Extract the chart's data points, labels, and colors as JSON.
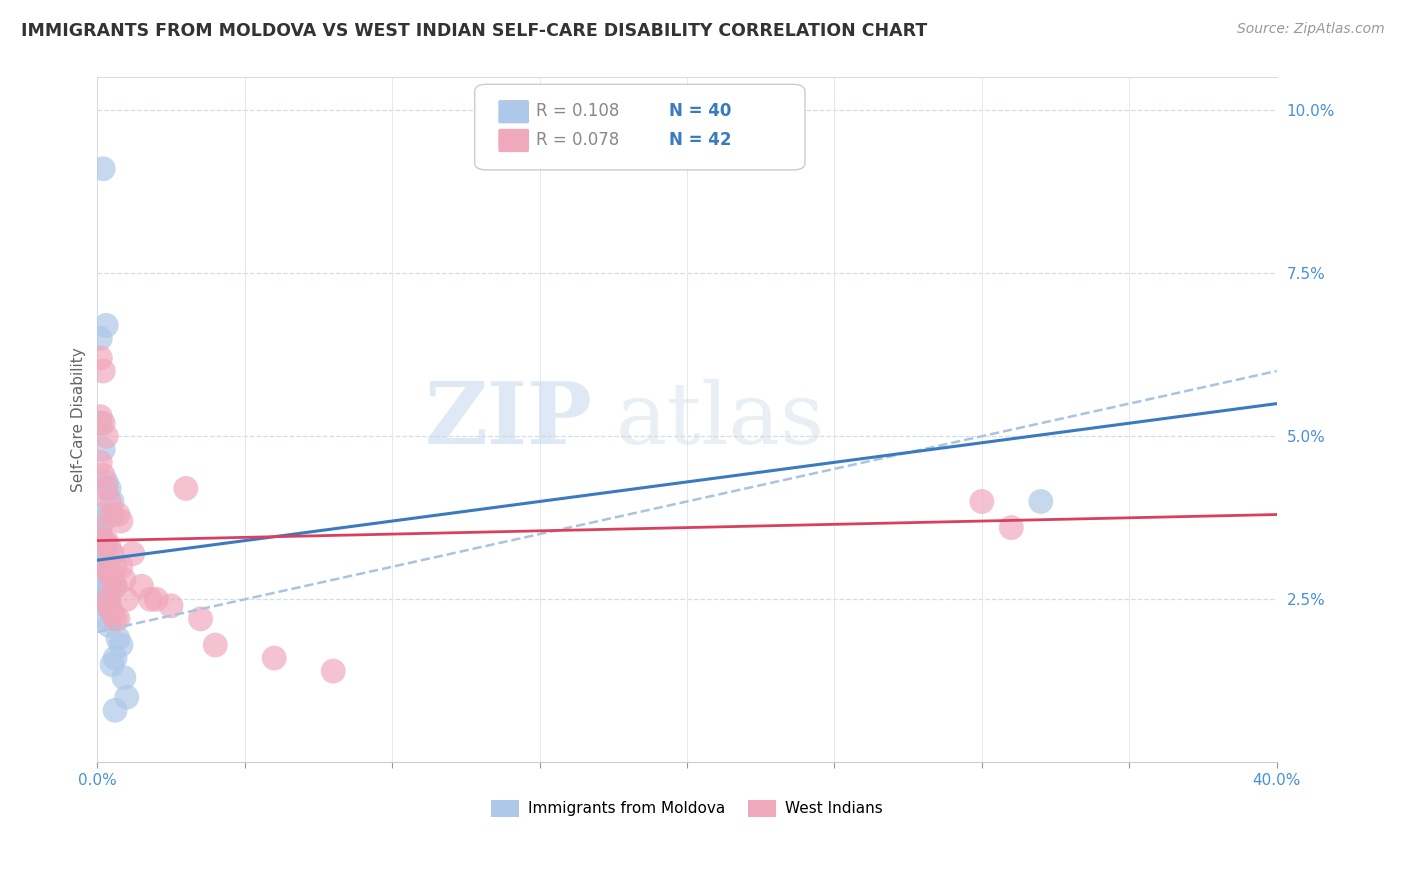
{
  "title": "IMMIGRANTS FROM MOLDOVA VS WEST INDIAN SELF-CARE DISABILITY CORRELATION CHART",
  "source": "Source: ZipAtlas.com",
  "ylabel": "Self-Care Disability",
  "right_yticklabels": [
    "",
    "2.5%",
    "5.0%",
    "7.5%",
    "10.0%"
  ],
  "right_yticks": [
    0.0,
    0.025,
    0.05,
    0.075,
    0.1
  ],
  "legend_r1": "R = 0.108",
  "legend_n1": "N = 40",
  "legend_r2": "R = 0.078",
  "legend_n2": "N = 42",
  "legend_label1": "Immigrants from Moldova",
  "legend_label2": "West Indians",
  "blue_color": "#adc8e8",
  "pink_color": "#f0a8bc",
  "blue_line_color": "#3a7bbf",
  "pink_line_color": "#d94060",
  "dashed_line_color": "#aac4df",
  "watermark_zip": "ZIP",
  "watermark_atlas": "atlas",
  "xmin": 0.0,
  "xmax": 0.4,
  "ymin": 0.0,
  "ymax": 0.105,
  "background_color": "#ffffff",
  "moldova_x": [
    0.002,
    0.001,
    0.003,
    0.001,
    0.002,
    0.003,
    0.004,
    0.005,
    0.001,
    0.002,
    0.001,
    0.002,
    0.003,
    0.001,
    0.002,
    0.001,
    0.001,
    0.002,
    0.001,
    0.002,
    0.003,
    0.004,
    0.003,
    0.004,
    0.001,
    0.002,
    0.003,
    0.004,
    0.005,
    0.006,
    0.003,
    0.004,
    0.007,
    0.008,
    0.006,
    0.005,
    0.009,
    0.01,
    0.006,
    0.32
  ],
  "moldova_y": [
    0.091,
    0.065,
    0.067,
    0.052,
    0.048,
    0.043,
    0.042,
    0.04,
    0.038,
    0.037,
    0.035,
    0.033,
    0.033,
    0.032,
    0.031,
    0.03,
    0.029,
    0.028,
    0.027,
    0.026,
    0.025,
    0.025,
    0.024,
    0.024,
    0.032,
    0.031,
    0.03,
    0.029,
    0.028,
    0.027,
    0.022,
    0.021,
    0.019,
    0.018,
    0.016,
    0.015,
    0.013,
    0.01,
    0.008,
    0.04
  ],
  "westindian_x": [
    0.001,
    0.002,
    0.001,
    0.002,
    0.003,
    0.001,
    0.002,
    0.003,
    0.004,
    0.005,
    0.001,
    0.002,
    0.003,
    0.004,
    0.005,
    0.006,
    0.003,
    0.004,
    0.005,
    0.006,
    0.007,
    0.008,
    0.003,
    0.004,
    0.005,
    0.006,
    0.007,
    0.008,
    0.009,
    0.01,
    0.012,
    0.015,
    0.018,
    0.02,
    0.025,
    0.03,
    0.035,
    0.04,
    0.06,
    0.08,
    0.3,
    0.31
  ],
  "westindian_y": [
    0.062,
    0.06,
    0.053,
    0.052,
    0.05,
    0.046,
    0.044,
    0.042,
    0.04,
    0.038,
    0.036,
    0.034,
    0.034,
    0.033,
    0.032,
    0.03,
    0.03,
    0.029,
    0.028,
    0.027,
    0.038,
    0.037,
    0.025,
    0.024,
    0.023,
    0.022,
    0.022,
    0.03,
    0.028,
    0.025,
    0.032,
    0.027,
    0.025,
    0.025,
    0.024,
    0.042,
    0.022,
    0.018,
    0.016,
    0.014,
    0.04,
    0.036
  ],
  "mol_line_x0": 0.0,
  "mol_line_y0": 0.031,
  "mol_line_x1": 0.4,
  "mol_line_y1": 0.055,
  "wi_line_x0": 0.0,
  "wi_line_y0": 0.034,
  "wi_line_x1": 0.4,
  "wi_line_y1": 0.038,
  "dash_line_x0": 0.0,
  "dash_line_y0": 0.02,
  "dash_line_x1": 0.4,
  "dash_line_y1": 0.06
}
